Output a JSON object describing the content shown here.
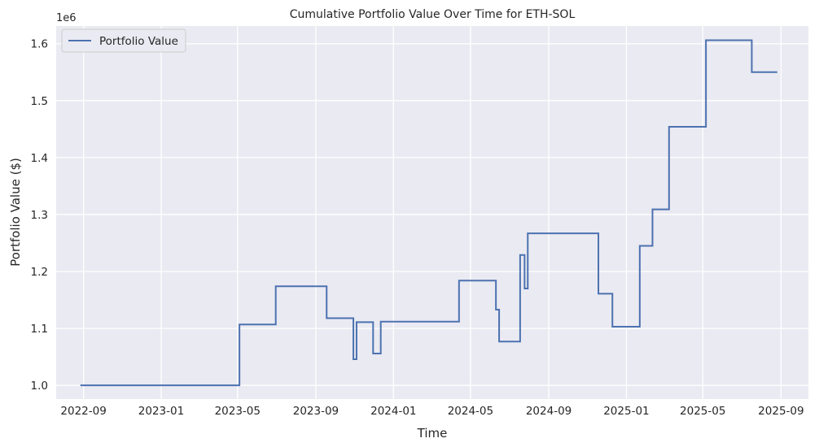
{
  "chart_data": {
    "type": "line",
    "title": "Cumulative Portfolio Value Over Time for ETH-SOL",
    "xlabel": "Time",
    "ylabel": "Portfolio Value ($)",
    "y_offset_text": "1e6",
    "legend": {
      "placement": "top-left",
      "entries": [
        "Portfolio Value"
      ]
    },
    "grid": true,
    "colors": {
      "background": "#eaeaf2",
      "grid": "#ffffff",
      "line": "#4c72b0"
    },
    "xlim": [
      "2022-07-20",
      "2025-10-14"
    ],
    "ylim": [
      0.976,
      1.631
    ],
    "x_ticks": [
      {
        "value": "2022-09-01",
        "label": "2022-09"
      },
      {
        "value": "2023-01-01",
        "label": "2023-01"
      },
      {
        "value": "2023-05-01",
        "label": "2023-05"
      },
      {
        "value": "2023-09-01",
        "label": "2023-09"
      },
      {
        "value": "2024-01-01",
        "label": "2024-01"
      },
      {
        "value": "2024-05-01",
        "label": "2024-05"
      },
      {
        "value": "2024-09-01",
        "label": "2024-09"
      },
      {
        "value": "2025-01-01",
        "label": "2025-01"
      },
      {
        "value": "2025-05-01",
        "label": "2025-05"
      },
      {
        "value": "2025-09-01",
        "label": "2025-09"
      }
    ],
    "y_ticks": [
      {
        "value": 1.0,
        "label": "1.0"
      },
      {
        "value": 1.1,
        "label": "1.1"
      },
      {
        "value": 1.2,
        "label": "1.2"
      },
      {
        "value": 1.3,
        "label": "1.3"
      },
      {
        "value": 1.4,
        "label": "1.4"
      },
      {
        "value": 1.5,
        "label": "1.5"
      },
      {
        "value": 1.6,
        "label": "1.6"
      }
    ],
    "series": [
      {
        "name": "Portfolio Value",
        "step": true,
        "points": [
          [
            "2022-08-27",
            1.0
          ],
          [
            "2023-05-04",
            1.107
          ],
          [
            "2023-06-30",
            1.174
          ],
          [
            "2023-09-18",
            1.118
          ],
          [
            "2023-10-30",
            1.046
          ],
          [
            "2023-11-04",
            1.111
          ],
          [
            "2023-11-30",
            1.056
          ],
          [
            "2023-12-12",
            1.112
          ],
          [
            "2024-04-13",
            1.184
          ],
          [
            "2024-06-10",
            1.133
          ],
          [
            "2024-06-15",
            1.077
          ],
          [
            "2024-07-18",
            1.229
          ],
          [
            "2024-07-25",
            1.17
          ],
          [
            "2024-07-30",
            1.267
          ],
          [
            "2024-11-18",
            1.161
          ],
          [
            "2024-12-10",
            1.103
          ],
          [
            "2025-01-22",
            1.245
          ],
          [
            "2025-02-11",
            1.309
          ],
          [
            "2025-03-09",
            1.454
          ],
          [
            "2025-05-06",
            1.606
          ],
          [
            "2025-07-17",
            1.55
          ],
          [
            "2025-08-26",
            1.55
          ]
        ]
      }
    ]
  }
}
